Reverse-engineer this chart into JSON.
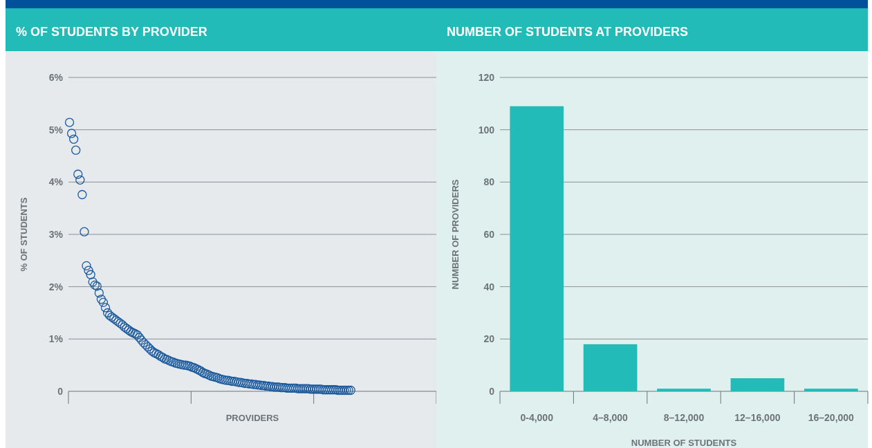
{
  "chart_data": [
    {
      "type": "scatter",
      "title": "% OF STUDENTS BY PROVIDER",
      "xlabel": "PROVIDERS",
      "ylabel": "% OF STUDENTS",
      "marker": "circle",
      "grid": "y",
      "tick_labels": "y",
      "categories": [
        null,
        null,
        null,
        null,
        null,
        null,
        null,
        null,
        null,
        null,
        null,
        null,
        null,
        null,
        null,
        null,
        null,
        null,
        null,
        null,
        null,
        null,
        null,
        null,
        null,
        null,
        null,
        null,
        null,
        null,
        null,
        null,
        null,
        null,
        null,
        null,
        null,
        null,
        null,
        null,
        null,
        null,
        null,
        null,
        null,
        null,
        null,
        null,
        null,
        null,
        null,
        null,
        null,
        null,
        null,
        null,
        null,
        null,
        null,
        null,
        null,
        null,
        null,
        null,
        null,
        null,
        null,
        null,
        null,
        null,
        null,
        null,
        null,
        null,
        null,
        null,
        null,
        null,
        null,
        null,
        null,
        null,
        null,
        null,
        null,
        null,
        null,
        null,
        null,
        null,
        null,
        null,
        null,
        null,
        null,
        null,
        null,
        null,
        null,
        null,
        null,
        null,
        null,
        null,
        null,
        null,
        null,
        null,
        null,
        null,
        null,
        null,
        null,
        null,
        null,
        null,
        null,
        null,
        null,
        null,
        null,
        null,
        null,
        null,
        null,
        null,
        null,
        null,
        null,
        null,
        null,
        null,
        null,
        null,
        null,
        null,
        null,
        null,
        null,
        null,
        null,
        null,
        null,
        null,
        null,
        null,
        null,
        null,
        null,
        null,
        null,
        null,
        null,
        null,
        null,
        null,
        null,
        null,
        null,
        null,
        null,
        null,
        null,
        null,
        null,
        null,
        null,
        null,
        null,
        null,
        null,
        null,
        null,
        null
      ],
      "ylim": [
        0,
        6
      ],
      "yticks": [
        {
          "value": 0,
          "label": "0"
        },
        {
          "value": 1,
          "label": "1%"
        },
        {
          "value": 2,
          "label": "2%"
        },
        {
          "value": 3,
          "label": "3%"
        },
        {
          "value": 4,
          "label": "4%"
        },
        {
          "value": 5,
          "label": "5%"
        },
        {
          "value": 6,
          "label": "6%"
        }
      ],
      "series": [
        {
          "color": "#1b5a9e",
          "values": [
            5.14,
            4.93,
            4.82,
            4.61,
            4.15,
            4.04,
            3.76,
            3.05,
            2.4,
            2.31,
            2.23,
            2.09,
            2.03,
            2.01,
            1.88,
            1.76,
            1.7,
            1.6,
            1.5,
            1.45,
            1.42,
            1.39,
            1.36,
            1.33,
            1.3,
            1.27,
            1.23,
            1.2,
            1.17,
            1.14,
            1.12,
            1.1,
            1.08,
            1.03,
            0.98,
            0.93,
            0.89,
            0.85,
            0.81,
            0.77,
            0.74,
            0.72,
            0.7,
            0.67,
            0.65,
            0.62,
            0.61,
            0.59,
            0.57,
            0.56,
            0.54,
            0.53,
            0.52,
            0.51,
            0.5,
            0.5,
            0.49,
            0.48,
            0.46,
            0.45,
            0.43,
            0.41,
            0.39,
            0.36,
            0.34,
            0.33,
            0.31,
            0.29,
            0.28,
            0.27,
            0.26,
            0.24,
            0.23,
            0.22,
            0.21,
            0.21,
            0.2,
            0.19,
            0.19,
            0.18,
            0.17,
            0.17,
            0.16,
            0.15,
            0.15,
            0.14,
            0.14,
            0.13,
            0.13,
            0.12,
            0.12,
            0.11,
            0.11,
            0.1,
            0.1,
            0.09,
            0.09,
            0.08,
            0.08,
            0.08,
            0.07,
            0.07,
            0.07,
            0.06,
            0.06,
            0.06,
            0.06,
            0.06,
            0.05,
            0.05,
            0.05,
            0.05,
            0.05,
            0.05,
            0.04,
            0.04,
            0.04,
            0.04,
            0.04,
            0.04,
            0.03,
            0.03,
            0.03,
            0.03,
            0.03,
            0.03,
            0.03,
            0.02,
            0.02,
            0.02,
            0.02,
            0.02,
            0.02,
            0.02,
            null,
            null,
            null,
            null,
            null,
            null,
            null,
            null,
            null,
            null,
            null,
            null,
            null,
            null,
            null,
            null,
            null,
            null,
            null,
            null,
            null,
            null,
            null,
            null,
            null,
            null,
            null,
            null,
            null,
            null,
            null,
            null,
            null,
            null,
            null,
            null,
            null,
            null,
            null,
            null
          ]
        }
      ]
    },
    {
      "type": "bar",
      "title": "NUMBER OF STUDENTS AT PROVIDERS",
      "xlabel": "NUMBER OF STUDENTS",
      "ylabel": "NUMBER OF PROVIDERS",
      "grid": "y",
      "categories": [
        "0-4,000",
        "4–8,000",
        "8–12,000",
        "12–16,000",
        "16–20,000"
      ],
      "values": [
        109,
        18,
        1,
        5,
        1
      ],
      "color": "#22bbb8",
      "ylim": [
        0,
        120
      ],
      "yticks": [
        0,
        20,
        40,
        60,
        80,
        100,
        120
      ]
    }
  ]
}
